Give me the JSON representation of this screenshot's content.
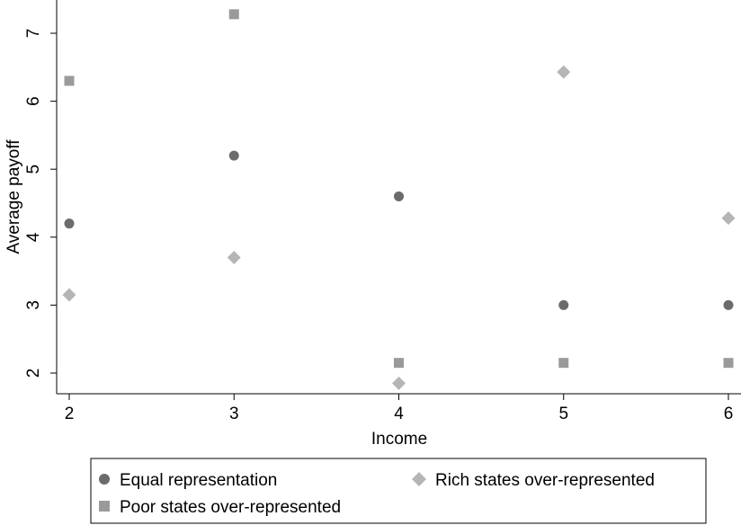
{
  "chart_data": {
    "type": "scatter",
    "title": "",
    "xlabel": "Income",
    "ylabel": "Average payoff",
    "x_ticks": [
      2,
      3,
      4,
      5,
      6
    ],
    "y_ticks": [
      2,
      3,
      4,
      5,
      6,
      7
    ],
    "xlim": [
      2,
      6
    ],
    "ylim": [
      1.75,
      7.4
    ],
    "grid": false,
    "legend_position": "bottom",
    "series": [
      {
        "name": "Equal representation",
        "marker": "circle",
        "color": "#6b6b6b",
        "x": [
          2,
          3,
          4,
          5,
          6
        ],
        "y": [
          4.2,
          5.2,
          4.6,
          3.0,
          3.0
        ]
      },
      {
        "name": "Rich states over-represented",
        "marker": "diamond",
        "color": "#b5b5b5",
        "x": [
          2,
          3,
          4,
          5,
          6
        ],
        "y": [
          3.15,
          3.7,
          1.85,
          6.43,
          4.28
        ]
      },
      {
        "name": "Poor states over-represented",
        "marker": "square",
        "color": "#9a9a9a",
        "x": [
          2,
          3,
          4,
          5,
          6
        ],
        "y": [
          6.3,
          7.28,
          2.15,
          2.15,
          2.15
        ]
      }
    ]
  }
}
